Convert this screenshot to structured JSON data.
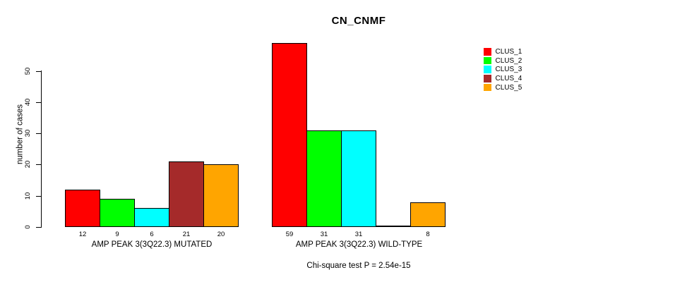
{
  "title": "CN_CNMF",
  "y_axis": {
    "label": "number of cases",
    "ticks": [
      0,
      10,
      20,
      30,
      40,
      50
    ]
  },
  "footnote": "Chi-square test P = 2.54e-15",
  "legend": {
    "entries": [
      {
        "name": "CLUS_1",
        "color": "#FF0000"
      },
      {
        "name": "CLUS_2",
        "color": "#00FF00"
      },
      {
        "name": "CLUS_3",
        "color": "#00FFFF"
      },
      {
        "name": "CLUS_4",
        "color": "#A52A2A"
      },
      {
        "name": "CLUS_5",
        "color": "#FFA500"
      }
    ]
  },
  "chart_data": {
    "type": "bar",
    "title": "CN_CNMF",
    "ylabel": "number of cases",
    "ylim": [
      0,
      59
    ],
    "yticks": [
      0,
      10,
      20,
      30,
      40,
      50
    ],
    "grid": false,
    "legend_position": "right",
    "series": [
      {
        "name": "CLUS_1",
        "color": "#FF0000"
      },
      {
        "name": "CLUS_2",
        "color": "#00FF00"
      },
      {
        "name": "CLUS_3",
        "color": "#00FFFF"
      },
      {
        "name": "CLUS_4",
        "color": "#A52A2A"
      },
      {
        "name": "CLUS_5",
        "color": "#FFA500"
      }
    ],
    "groups": [
      {
        "key": "mutated",
        "label": "AMP PEAK 3(3Q22.3) MUTATED",
        "values": [
          12,
          9,
          6,
          21,
          20
        ],
        "bar_labels": [
          "12",
          "9",
          "6",
          "21",
          "20"
        ]
      },
      {
        "key": "wild-type",
        "label": "AMP PEAK 3(3Q22.3) WILD-TYPE",
        "values": [
          59,
          31,
          31,
          0,
          8
        ],
        "bar_labels": [
          "59",
          "31",
          "31",
          "",
          "8"
        ]
      }
    ],
    "footnote": "Chi-square test P = 2.54e-15"
  }
}
